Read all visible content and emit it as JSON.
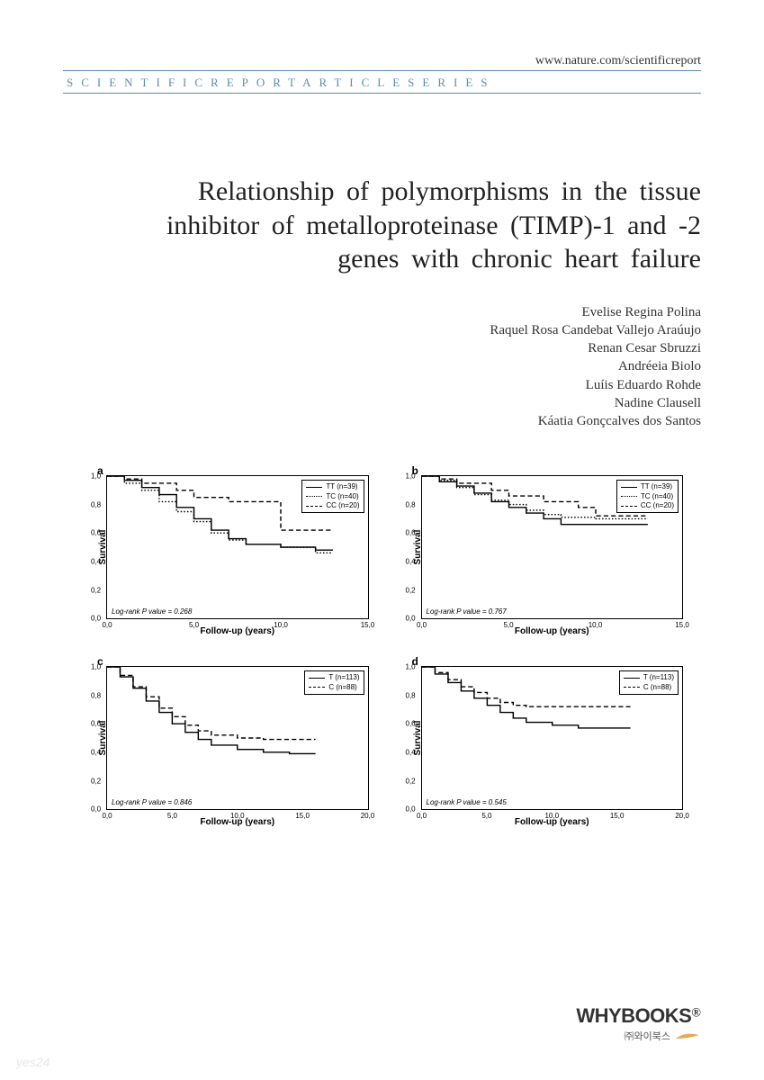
{
  "header": {
    "url": "www.nature.com/scientificreport",
    "banner": "SCIENTIFICREPORTARTICLESERIES"
  },
  "title": "Relationship of polymorphisms in the tissue inhibitor of metalloproteinase (TIMP)-1 and -2 genes with chronic heart failure",
  "authors": [
    "Evelise Regina Polina",
    "Raquel Rosa Candebat Vallejo Araúujo",
    "Renan Cesar Sbruzzi",
    "Andréeia Biolo",
    "Luíis Eduardo Rohde",
    "Nadine Clausell",
    "Káatia Gonçcalves dos Santos"
  ],
  "charts": {
    "ylabel": "Survival",
    "panels": [
      {
        "id": "a",
        "xlabel": "Follow-up (years)",
        "xlim": [
          0,
          15
        ],
        "xtick_step": 5,
        "ylim": [
          0,
          1
        ],
        "ytick_step": 0.2,
        "pvalue_text": "Log-rank P value = 0.268",
        "legend": [
          {
            "label": "TT (n=39)",
            "style": "solid"
          },
          {
            "label": "TC (n=40)",
            "style": "dotted"
          },
          {
            "label": "CC (n=20)",
            "style": "dashed"
          }
        ],
        "series": [
          {
            "style": "solid",
            "points": [
              [
                0,
                1.0
              ],
              [
                1,
                0.97
              ],
              [
                2,
                0.92
              ],
              [
                3,
                0.87
              ],
              [
                4,
                0.78
              ],
              [
                5,
                0.7
              ],
              [
                6,
                0.62
              ],
              [
                7,
                0.56
              ],
              [
                8,
                0.52
              ],
              [
                10,
                0.5
              ],
              [
                12,
                0.48
              ],
              [
                13,
                0.48
              ]
            ]
          },
          {
            "style": "dotted",
            "points": [
              [
                0,
                1.0
              ],
              [
                1,
                0.95
              ],
              [
                2,
                0.9
              ],
              [
                3,
                0.82
              ],
              [
                4,
                0.75
              ],
              [
                5,
                0.68
              ],
              [
                6,
                0.6
              ],
              [
                7,
                0.55
              ],
              [
                8,
                0.52
              ],
              [
                10,
                0.5
              ],
              [
                12,
                0.46
              ],
              [
                13,
                0.46
              ]
            ]
          },
          {
            "style": "dashed",
            "points": [
              [
                0,
                1.0
              ],
              [
                1,
                0.98
              ],
              [
                2,
                0.95
              ],
              [
                4,
                0.9
              ],
              [
                5,
                0.85
              ],
              [
                7,
                0.82
              ],
              [
                9,
                0.82
              ],
              [
                10,
                0.62
              ],
              [
                12,
                0.62
              ],
              [
                13,
                0.62
              ]
            ]
          }
        ]
      },
      {
        "id": "b",
        "xlabel": "Follow-up (years)",
        "xlim": [
          0,
          15
        ],
        "xtick_step": 5,
        "ylim": [
          0,
          1
        ],
        "ytick_step": 0.2,
        "pvalue_text": "Log-rank P value = 0.767",
        "legend": [
          {
            "label": "TT (n=39)",
            "style": "solid"
          },
          {
            "label": "TC (n=40)",
            "style": "dotted"
          },
          {
            "label": "CC (n=20)",
            "style": "dashed"
          }
        ],
        "series": [
          {
            "style": "solid",
            "points": [
              [
                0,
                1.0
              ],
              [
                1,
                0.96
              ],
              [
                2,
                0.93
              ],
              [
                3,
                0.88
              ],
              [
                4,
                0.82
              ],
              [
                5,
                0.78
              ],
              [
                6,
                0.74
              ],
              [
                7,
                0.7
              ],
              [
                8,
                0.66
              ],
              [
                10,
                0.66
              ],
              [
                12,
                0.66
              ],
              [
                13,
                0.66
              ]
            ]
          },
          {
            "style": "dotted",
            "points": [
              [
                0,
                1.0
              ],
              [
                1,
                0.97
              ],
              [
                2,
                0.92
              ],
              [
                3,
                0.87
              ],
              [
                4,
                0.83
              ],
              [
                5,
                0.8
              ],
              [
                6,
                0.76
              ],
              [
                7,
                0.73
              ],
              [
                8,
                0.71
              ],
              [
                10,
                0.7
              ],
              [
                12,
                0.7
              ],
              [
                13,
                0.7
              ]
            ]
          },
          {
            "style": "dashed",
            "points": [
              [
                0,
                1.0
              ],
              [
                1,
                0.98
              ],
              [
                2,
                0.95
              ],
              [
                4,
                0.9
              ],
              [
                5,
                0.86
              ],
              [
                7,
                0.82
              ],
              [
                9,
                0.78
              ],
              [
                10,
                0.72
              ],
              [
                12,
                0.72
              ],
              [
                13,
                0.72
              ]
            ]
          }
        ]
      },
      {
        "id": "c",
        "xlabel": "Follow-up (years)",
        "xlim": [
          0,
          20
        ],
        "xtick_step": 5,
        "ylim": [
          0,
          1
        ],
        "ytick_step": 0.2,
        "pvalue_text": "Log-rank P value = 0.846",
        "legend": [
          {
            "label": "T (n=113)",
            "style": "solid"
          },
          {
            "label": "C (n=88)",
            "style": "dashed"
          }
        ],
        "series": [
          {
            "style": "solid",
            "points": [
              [
                0,
                1.0
              ],
              [
                1,
                0.93
              ],
              [
                2,
                0.85
              ],
              [
                3,
                0.76
              ],
              [
                4,
                0.68
              ],
              [
                5,
                0.6
              ],
              [
                6,
                0.54
              ],
              [
                7,
                0.49
              ],
              [
                8,
                0.45
              ],
              [
                10,
                0.42
              ],
              [
                12,
                0.4
              ],
              [
                14,
                0.39
              ],
              [
                16,
                0.39
              ]
            ]
          },
          {
            "style": "dashed",
            "points": [
              [
                0,
                1.0
              ],
              [
                1,
                0.94
              ],
              [
                2,
                0.86
              ],
              [
                3,
                0.79
              ],
              [
                4,
                0.71
              ],
              [
                5,
                0.65
              ],
              [
                6,
                0.59
              ],
              [
                7,
                0.55
              ],
              [
                8,
                0.52
              ],
              [
                10,
                0.5
              ],
              [
                12,
                0.49
              ],
              [
                14,
                0.49
              ],
              [
                16,
                0.49
              ]
            ]
          }
        ]
      },
      {
        "id": "d",
        "xlabel": "Follow-up (years)",
        "xlim": [
          0,
          20
        ],
        "xtick_step": 5,
        "ylim": [
          0,
          1
        ],
        "ytick_step": 0.2,
        "pvalue_text": "Log-rank P value = 0.545",
        "legend": [
          {
            "label": "T (n=113)",
            "style": "solid"
          },
          {
            "label": "C (n=88)",
            "style": "dashed"
          }
        ],
        "series": [
          {
            "style": "solid",
            "points": [
              [
                0,
                1.0
              ],
              [
                1,
                0.95
              ],
              [
                2,
                0.89
              ],
              [
                3,
                0.83
              ],
              [
                4,
                0.78
              ],
              [
                5,
                0.73
              ],
              [
                6,
                0.68
              ],
              [
                7,
                0.64
              ],
              [
                8,
                0.61
              ],
              [
                10,
                0.59
              ],
              [
                12,
                0.57
              ],
              [
                14,
                0.57
              ],
              [
                16,
                0.57
              ]
            ]
          },
          {
            "style": "dashed",
            "points": [
              [
                0,
                1.0
              ],
              [
                1,
                0.96
              ],
              [
                2,
                0.91
              ],
              [
                3,
                0.86
              ],
              [
                4,
                0.82
              ],
              [
                5,
                0.78
              ],
              [
                6,
                0.75
              ],
              [
                7,
                0.73
              ],
              [
                8,
                0.72
              ],
              [
                10,
                0.72
              ],
              [
                12,
                0.72
              ],
              [
                14,
                0.72
              ],
              [
                16,
                0.72
              ]
            ]
          }
        ]
      }
    ],
    "line_color": "#000000",
    "line_width": 1.4,
    "background_color": "#ffffff",
    "tick_fontsize": 8,
    "label_fontsize": 10
  },
  "footer": {
    "brand": "WHYBOOKS",
    "brand_sub": "㈜와이북스",
    "swoosh_color": "#e8a857"
  },
  "watermark": "yes24"
}
